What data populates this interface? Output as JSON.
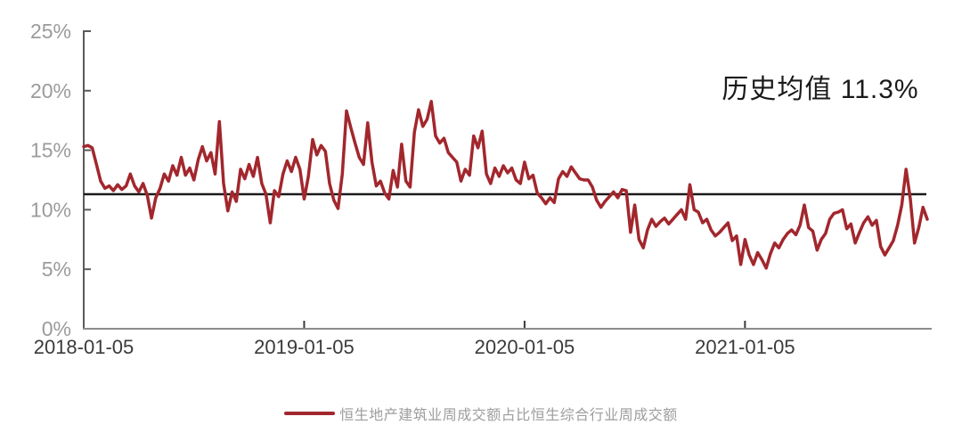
{
  "chart_data": {
    "type": "line",
    "title": "",
    "description_annotation": "历史均值 11.3%",
    "grid": "off",
    "legend_position": "bottom-center",
    "y_axis": {
      "ylim": [
        0,
        25
      ],
      "tick_values": [
        0,
        5,
        10,
        15,
        20,
        25
      ],
      "tick_labels": [
        "0%",
        "5%",
        "10%",
        "15%",
        "20%",
        "25%"
      ]
    },
    "x_axis": {
      "unit": "week",
      "ticks": [
        {
          "label": "2018-01-05",
          "week": 0
        },
        {
          "label": "2019-01-05",
          "week": 52
        },
        {
          "label": "2020-01-05",
          "week": 104
        },
        {
          "label": "2021-01-05",
          "week": 156
        }
      ],
      "total_points": 200
    },
    "mean_line": {
      "value": 11.3,
      "label": "历史均值 11.3%",
      "color": "#1a1a1a"
    },
    "series": [
      {
        "name": "恒生地产建筑业周成交额占比恒生综合行业周成交额",
        "color": "#a2272d",
        "values": [
          15.3,
          15.4,
          15.2,
          13.8,
          12.4,
          11.8,
          12.0,
          11.6,
          12.1,
          11.7,
          12.0,
          13.0,
          12.0,
          11.5,
          12.2,
          11.2,
          9.3,
          11.0,
          11.8,
          13.0,
          12.4,
          13.7,
          12.9,
          14.4,
          12.9,
          13.5,
          12.5,
          14.2,
          15.3,
          14.1,
          14.8,
          13.0,
          17.4,
          12.2,
          9.9,
          11.5,
          10.7,
          13.4,
          12.6,
          13.8,
          12.8,
          14.4,
          12.2,
          11.3,
          8.9,
          11.6,
          11.1,
          13.0,
          14.1,
          13.2,
          14.4,
          13.4,
          10.9,
          12.8,
          15.9,
          14.6,
          15.4,
          14.9,
          12.2,
          10.8,
          10.1,
          13.0,
          18.3,
          16.9,
          15.6,
          14.4,
          13.8,
          17.3,
          14.0,
          12.0,
          12.4,
          11.4,
          10.9,
          13.3,
          11.9,
          15.5,
          12.4,
          11.9,
          16.5,
          18.4,
          17.0,
          17.6,
          19.1,
          16.2,
          15.6,
          16.0,
          14.8,
          14.4,
          14.0,
          12.4,
          13.4,
          12.9,
          16.2,
          15.2,
          16.6,
          13.0,
          12.2,
          13.5,
          12.8,
          13.7,
          13.1,
          13.5,
          12.5,
          12.2,
          14.0,
          12.6,
          12.9,
          11.4,
          11.0,
          10.5,
          11.0,
          10.6,
          12.6,
          13.2,
          12.8,
          13.6,
          13.1,
          12.6,
          12.5,
          12.5,
          11.9,
          10.8,
          10.2,
          10.7,
          11.1,
          11.5,
          11.0,
          11.7,
          11.6,
          8.1,
          10.4,
          7.5,
          6.8,
          8.3,
          9.2,
          8.6,
          9.0,
          9.3,
          8.8,
          9.2,
          9.6,
          10.0,
          9.2,
          12.1,
          10.0,
          9.8,
          8.9,
          9.2,
          8.3,
          7.8,
          8.1,
          8.5,
          8.9,
          7.4,
          7.8,
          5.4,
          7.5,
          6.2,
          5.4,
          6.4,
          5.8,
          5.1,
          6.3,
          7.2,
          6.8,
          7.5,
          8.0,
          8.3,
          7.9,
          8.7,
          10.4,
          8.5,
          8.2,
          6.6,
          7.5,
          8.0,
          9.2,
          9.7,
          9.8,
          10.0,
          8.4,
          8.8,
          7.2,
          8.1,
          8.9,
          9.4,
          8.7,
          9.1,
          6.9,
          6.2,
          6.8,
          7.4,
          8.7,
          10.4,
          13.4,
          10.9,
          7.2,
          8.5,
          10.2,
          9.2
        ]
      }
    ],
    "legend": {
      "label": "恒生地产建筑业周成交额占比恒生综合行业周成交额",
      "line_color": "#a2272d"
    }
  },
  "colors": {
    "series_red": "#a2272d",
    "mean_black": "#1a1a1a",
    "y_label_gray": "#9b9b9b",
    "x_label_dark": "#3a3a3a",
    "y_axis_line": "#5a5a5a",
    "x_axis_line": "#8c8c8c",
    "background": "#ffffff"
  }
}
